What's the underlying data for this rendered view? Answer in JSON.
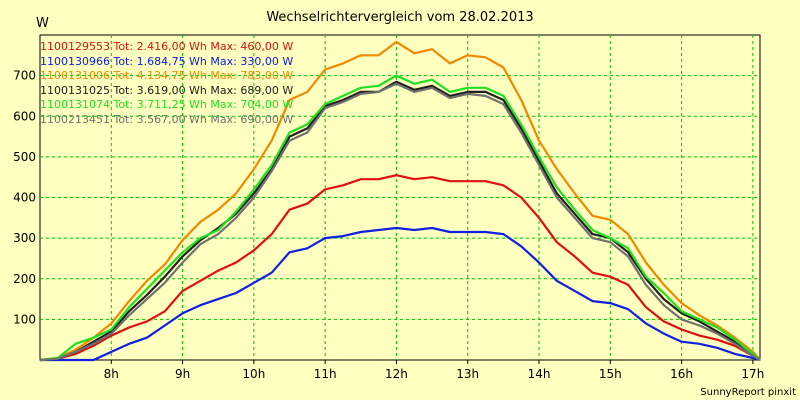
{
  "chart_data": {
    "type": "line",
    "title": "Wechselrichtervergleich vom 28.02.2013",
    "ylabel": "W",
    "xlabel": "",
    "xlim": [
      7.0,
      17.1
    ],
    "ylim": [
      0,
      800
    ],
    "yticks": [
      100,
      200,
      300,
      400,
      500,
      600,
      700
    ],
    "xticks": [
      8,
      9,
      10,
      11,
      12,
      13,
      14,
      15,
      16,
      17
    ],
    "xtick_labels": [
      "8h",
      "9h",
      "10h",
      "11h",
      "12h",
      "13h",
      "14h",
      "15h",
      "16h",
      "17h"
    ],
    "grid": true,
    "legend_position": "top-left",
    "footer": "SunnyReport pinxit",
    "x": [
      7.0,
      7.25,
      7.5,
      7.75,
      8.0,
      8.25,
      8.5,
      8.75,
      9.0,
      9.25,
      9.5,
      9.75,
      10.0,
      10.25,
      10.5,
      10.75,
      11.0,
      11.25,
      11.5,
      11.75,
      12.0,
      12.25,
      12.5,
      12.75,
      13.0,
      13.25,
      13.5,
      13.75,
      14.0,
      14.25,
      14.5,
      14.75,
      15.0,
      15.25,
      15.5,
      15.75,
      16.0,
      16.25,
      16.5,
      16.75,
      17.0,
      17.1
    ],
    "series": [
      {
        "id": "1100129553",
        "legend": "1100129553 Tot: 2.416,00 Wh Max: 460,00 W",
        "color": "#e01010",
        "values": [
          0,
          3,
          15,
          35,
          60,
          80,
          95,
          120,
          170,
          195,
          220,
          240,
          270,
          310,
          370,
          385,
          420,
          430,
          445,
          445,
          455,
          445,
          450,
          440,
          440,
          440,
          430,
          400,
          350,
          290,
          255,
          215,
          205,
          185,
          130,
          95,
          75,
          60,
          50,
          35,
          10,
          0
        ]
      },
      {
        "id": "1100130966",
        "legend": "1100130966 Tot: 1.684,75 Wh Max: 330,00 W",
        "color": "#1020e0",
        "values": [
          0,
          0,
          0,
          0,
          20,
          40,
          55,
          85,
          115,
          135,
          150,
          165,
          190,
          215,
          265,
          275,
          300,
          305,
          315,
          320,
          325,
          320,
          325,
          315,
          315,
          315,
          310,
          280,
          240,
          195,
          170,
          145,
          140,
          125,
          90,
          65,
          45,
          40,
          30,
          15,
          5,
          0
        ]
      },
      {
        "id": "1100131006",
        "legend": "1100131006 Tot: 4.134,75 Wh Max: 783,00 W",
        "color": "#f08800",
        "values": [
          0,
          5,
          25,
          55,
          90,
          145,
          195,
          235,
          295,
          340,
          370,
          410,
          470,
          540,
          640,
          660,
          715,
          730,
          750,
          750,
          783,
          755,
          765,
          730,
          750,
          745,
          720,
          640,
          540,
          470,
          410,
          355,
          345,
          310,
          240,
          185,
          140,
          110,
          85,
          55,
          20,
          0
        ]
      },
      {
        "id": "1100131025",
        "legend": "1100131025 Tot: 3.619,00 Wh Max: 689,00 W",
        "color": "#202020",
        "values": [
          0,
          3,
          20,
          45,
          70,
          120,
          160,
          205,
          255,
          295,
          325,
          360,
          410,
          470,
          550,
          570,
          625,
          640,
          660,
          660,
          685,
          665,
          675,
          650,
          660,
          660,
          640,
          570,
          490,
          410,
          360,
          310,
          300,
          265,
          200,
          150,
          115,
          95,
          70,
          45,
          15,
          0
        ]
      },
      {
        "id": "1100131074",
        "legend": "1100131074 Tot: 3.711,25 Wh Max: 704,00 W",
        "color": "#20e020",
        "values": [
          0,
          5,
          40,
          55,
          75,
          130,
          175,
          220,
          265,
          300,
          320,
          365,
          420,
          480,
          560,
          580,
          630,
          650,
          670,
          675,
          700,
          680,
          690,
          660,
          670,
          670,
          650,
          580,
          500,
          425,
          370,
          320,
          300,
          275,
          205,
          165,
          120,
          100,
          80,
          50,
          15,
          0
        ]
      },
      {
        "id": "1100213451",
        "legend": "1100213451 Tot: 3.567,00 Wh Max: 690,00 W",
        "color": "#707070",
        "values": [
          0,
          3,
          20,
          40,
          65,
          110,
          150,
          190,
          240,
          285,
          310,
          350,
          400,
          465,
          540,
          560,
          620,
          635,
          655,
          660,
          680,
          660,
          670,
          645,
          655,
          650,
          630,
          560,
          480,
          400,
          350,
          300,
          290,
          255,
          185,
          135,
          100,
          85,
          65,
          40,
          10,
          0
        ]
      }
    ]
  }
}
